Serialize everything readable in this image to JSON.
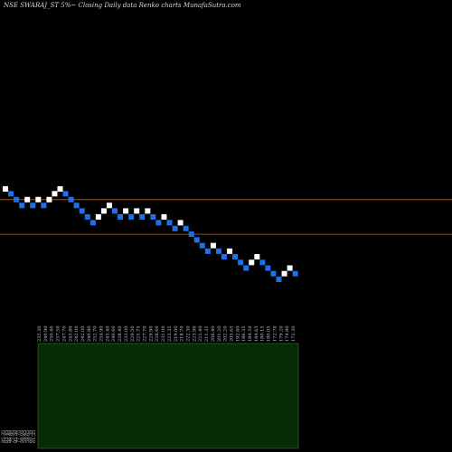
{
  "header": {
    "title": "NSE SWARAJ_ST 5%~  Closing Daily data  Renko  charts MunafaSutra.com"
  },
  "colors": {
    "background": "#000000",
    "up_brick": "#ffffff",
    "down_brick": "#1f6fe8",
    "reference_line": "#b5651d",
    "volume_panel": "#062b06",
    "volume_border": "#3a7a3a"
  },
  "chart_data": {
    "type": "renko",
    "title": "NSE SWARAJ_ST 5%~  Closing Daily data  Renko  charts MunafaSutra.com",
    "bricks": [
      {
        "dir": "up",
        "level": 202.1
      },
      {
        "dir": "down",
        "level": 198.5
      },
      {
        "dir": "down",
        "level": 194.2
      },
      {
        "dir": "down",
        "level": 190.0
      },
      {
        "dir": "up",
        "level": 194.2
      },
      {
        "dir": "down",
        "level": 190.0
      },
      {
        "dir": "up",
        "level": 194.2
      },
      {
        "dir": "down",
        "level": 190.0
      },
      {
        "dir": "up",
        "level": 194.2
      },
      {
        "dir": "up",
        "level": 198.5
      },
      {
        "dir": "up",
        "level": 202.1
      },
      {
        "dir": "down",
        "level": 198.5
      },
      {
        "dir": "down",
        "level": 194.2
      },
      {
        "dir": "down",
        "level": 190.0
      },
      {
        "dir": "down",
        "level": 186.1
      },
      {
        "dir": "down",
        "level": 182.0
      },
      {
        "dir": "down",
        "level": 178.1
      },
      {
        "dir": "up",
        "level": 182.0
      },
      {
        "dir": "up",
        "level": 186.1
      },
      {
        "dir": "up",
        "level": 190.0
      },
      {
        "dir": "down",
        "level": 186.1
      },
      {
        "dir": "down",
        "level": 182.0
      },
      {
        "dir": "up",
        "level": 186.1
      },
      {
        "dir": "down",
        "level": 182.0
      },
      {
        "dir": "up",
        "level": 186.1
      },
      {
        "dir": "down",
        "level": 182.0
      },
      {
        "dir": "up",
        "level": 186.1
      },
      {
        "dir": "down",
        "level": 182.0
      },
      {
        "dir": "down",
        "level": 178.1
      },
      {
        "dir": "up",
        "level": 182.0
      },
      {
        "dir": "down",
        "level": 178.1
      },
      {
        "dir": "down",
        "level": 174.3
      },
      {
        "dir": "up",
        "level": 178.1
      },
      {
        "dir": "down",
        "level": 174.3
      },
      {
        "dir": "down",
        "level": 170.6
      },
      {
        "dir": "down",
        "level": 167.0
      },
      {
        "dir": "down",
        "level": 163.5
      },
      {
        "dir": "down",
        "level": 160.1
      },
      {
        "dir": "up",
        "level": 163.5
      },
      {
        "dir": "down",
        "level": 160.1
      },
      {
        "dir": "down",
        "level": 156.8
      },
      {
        "dir": "up",
        "level": 160.1
      },
      {
        "dir": "down",
        "level": 156.8
      },
      {
        "dir": "down",
        "level": 153.5
      },
      {
        "dir": "down",
        "level": 150.3
      },
      {
        "dir": "up",
        "level": 153.5
      },
      {
        "dir": "up",
        "level": 156.8
      },
      {
        "dir": "down",
        "level": 153.5
      },
      {
        "dir": "down",
        "level": 150.3
      },
      {
        "dir": "down",
        "level": 147.2
      },
      {
        "dir": "down",
        "level": 144.1
      },
      {
        "dir": "up",
        "level": 147.2
      },
      {
        "dir": "up",
        "level": 150.3
      },
      {
        "dir": "down",
        "level": 147.2
      }
    ],
    "x_tick_labels": [
      "235.30",
      "240.90",
      "250.40",
      "257.50",
      "247.70",
      "245.80",
      "242.00",
      "242.00",
      "240.80",
      "252.70",
      "254.90",
      "245.40",
      "240.60",
      "238.40",
      "233.00",
      "229.50",
      "225.75",
      "227.70",
      "229.90",
      "228.60",
      "231.00",
      "223.35",
      "219.00",
      "218.70",
      "222.30",
      "223.90",
      "221.40",
      "211.35",
      "206.40",
      "201.20",
      "202.20",
      "205.65",
      "192.60",
      "186.35",
      "184.50",
      "184.65",
      "180.15",
      "180.05",
      "172.70",
      "179.20",
      "174.90",
      "172.30"
    ],
    "low_tick_labels": [
      "85.35",
      "83.45",
      "86.40",
      "77.95",
      "95.50",
      "77.75",
      "56.05",
      "59.45",
      "58.65",
      "60.35",
      "61.35"
    ],
    "reference_lines": [
      {
        "label": "upper",
        "value": 194.2
      },
      {
        "label": "lower",
        "value": 170.6
      }
    ],
    "volume_panel": true,
    "grid": false,
    "legend": "none"
  }
}
